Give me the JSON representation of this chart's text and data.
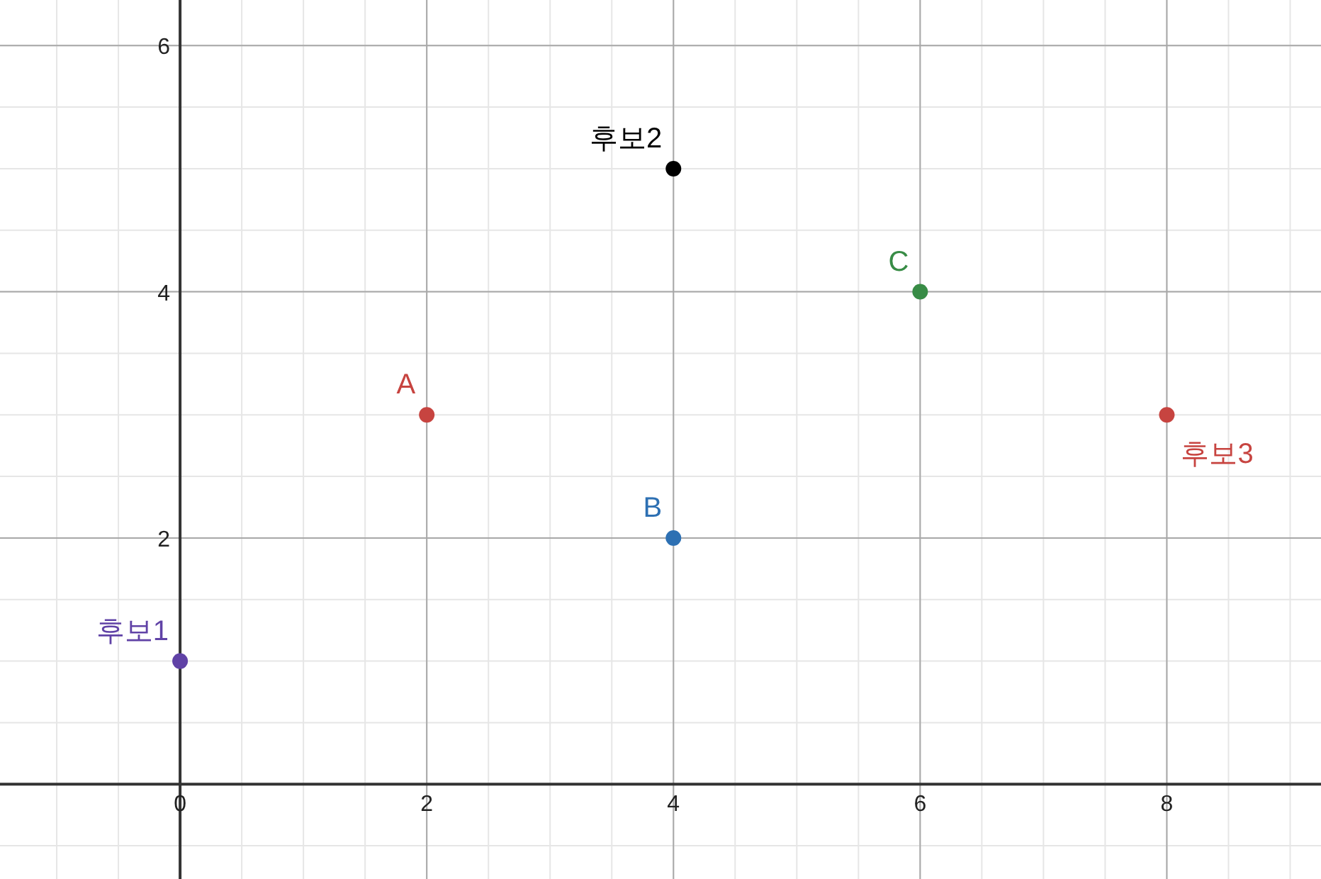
{
  "chart_data": {
    "type": "scatter",
    "xlim": [
      -1.46,
      9.25
    ],
    "ylim": [
      -0.77,
      6.37
    ],
    "xticks": [
      0,
      2,
      4,
      6,
      8
    ],
    "yticks": [
      2,
      4,
      6
    ],
    "grid": true,
    "marker": "circle",
    "legend": false,
    "series": [
      {
        "name": "후보1",
        "color": "#6042a6",
        "x": [
          0
        ],
        "values": [
          1
        ]
      },
      {
        "name": "A",
        "color": "#c74440",
        "x": [
          2
        ],
        "values": [
          3
        ]
      },
      {
        "name": "B",
        "color": "#2d70b3",
        "x": [
          4
        ],
        "values": [
          2
        ]
      },
      {
        "name": "후보2",
        "color": "#000000",
        "x": [
          4
        ],
        "values": [
          5
        ]
      },
      {
        "name": "C",
        "color": "#388c46",
        "x": [
          6
        ],
        "values": [
          4
        ]
      },
      {
        "name": "후보3",
        "color": "#c74440",
        "x": [
          8
        ],
        "values": [
          3
        ]
      }
    ]
  }
}
